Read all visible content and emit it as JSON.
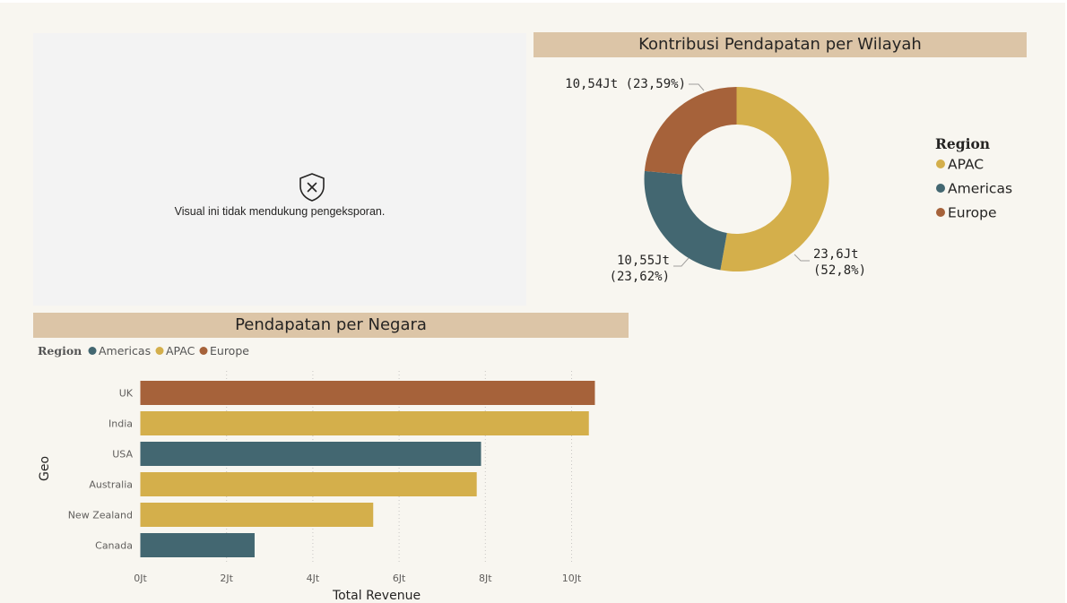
{
  "placeholder": {
    "message": "Visual ini tidak mendukung pengeksporan.",
    "icon": "shield-x-icon"
  },
  "colors": {
    "APAC": "#d4af4b",
    "Americas": "#436771",
    "Europe": "#a6623a",
    "title_bar": "#dcc5a7",
    "background": "#f8f6f0"
  },
  "chart_data": [
    {
      "type": "pie",
      "title": "Kontribusi Pendapatan per Wilayah",
      "legend_title": "Region",
      "legend_position": "right",
      "donut": true,
      "slices": [
        {
          "name": "APAC",
          "value": 23.6,
          "label": "23,6Jt",
          "pct_label": "(52,8%)"
        },
        {
          "name": "Americas",
          "value": 10.55,
          "label": "10,55Jt",
          "pct_label": "(23,62%)"
        },
        {
          "name": "Europe",
          "value": 10.54,
          "label": "10,54Jt (23,59%)",
          "pct_label": ""
        }
      ]
    },
    {
      "type": "bar",
      "orientation": "horizontal",
      "title": "Pendapatan per Negara",
      "legend_title": "Region",
      "legend_position": "top-left",
      "legend": [
        "Americas",
        "APAC",
        "Europe"
      ],
      "xlabel": "Total Revenue",
      "ylabel": "Geo",
      "xlim": [
        0,
        11
      ],
      "xticks": [
        {
          "value": 0,
          "label": "0Jt"
        },
        {
          "value": 2,
          "label": "2Jt"
        },
        {
          "value": 4,
          "label": "4Jt"
        },
        {
          "value": 6,
          "label": "6Jt"
        },
        {
          "value": 8,
          "label": "8Jt"
        },
        {
          "value": 10,
          "label": "10Jt"
        }
      ],
      "grid": true,
      "bars": [
        {
          "category": "UK",
          "value": 10.54,
          "region": "Europe"
        },
        {
          "category": "India",
          "value": 10.4,
          "region": "APAC"
        },
        {
          "category": "USA",
          "value": 7.9,
          "region": "Americas"
        },
        {
          "category": "Australia",
          "value": 7.8,
          "region": "APAC"
        },
        {
          "category": "New Zealand",
          "value": 5.4,
          "region": "APAC"
        },
        {
          "category": "Canada",
          "value": 2.65,
          "region": "Americas"
        }
      ]
    }
  ]
}
